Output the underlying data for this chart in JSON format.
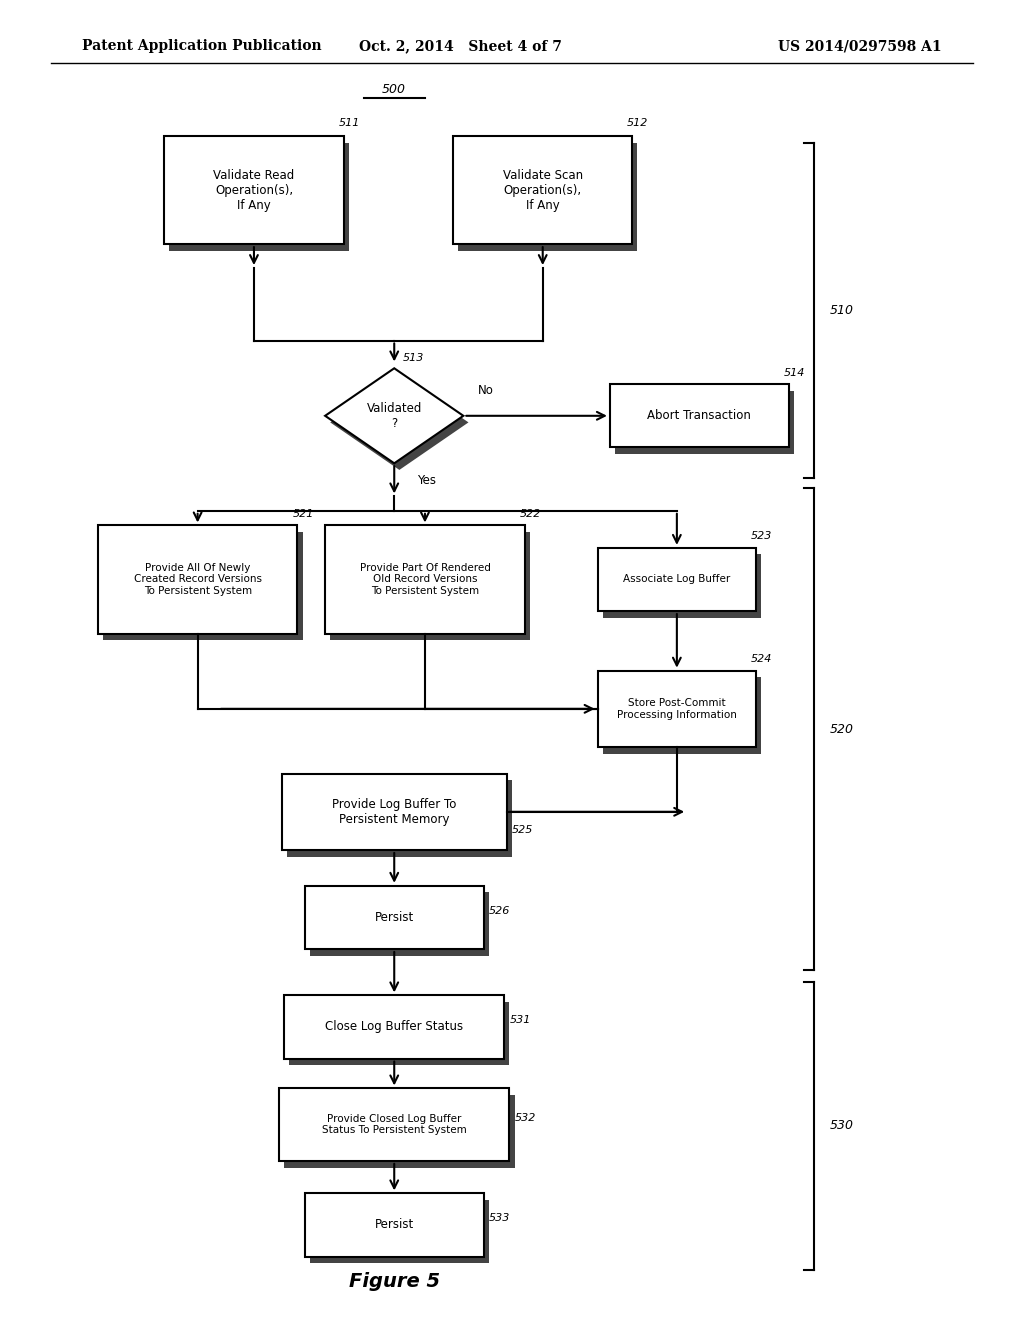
{
  "header_left": "Patent Application Publication",
  "header_center": "Oct. 2, 2014   Sheet 4 of 7",
  "header_right": "US 2014/0297598 A1",
  "figure_label": "Figure 5",
  "bg_color": "#ffffff"
}
